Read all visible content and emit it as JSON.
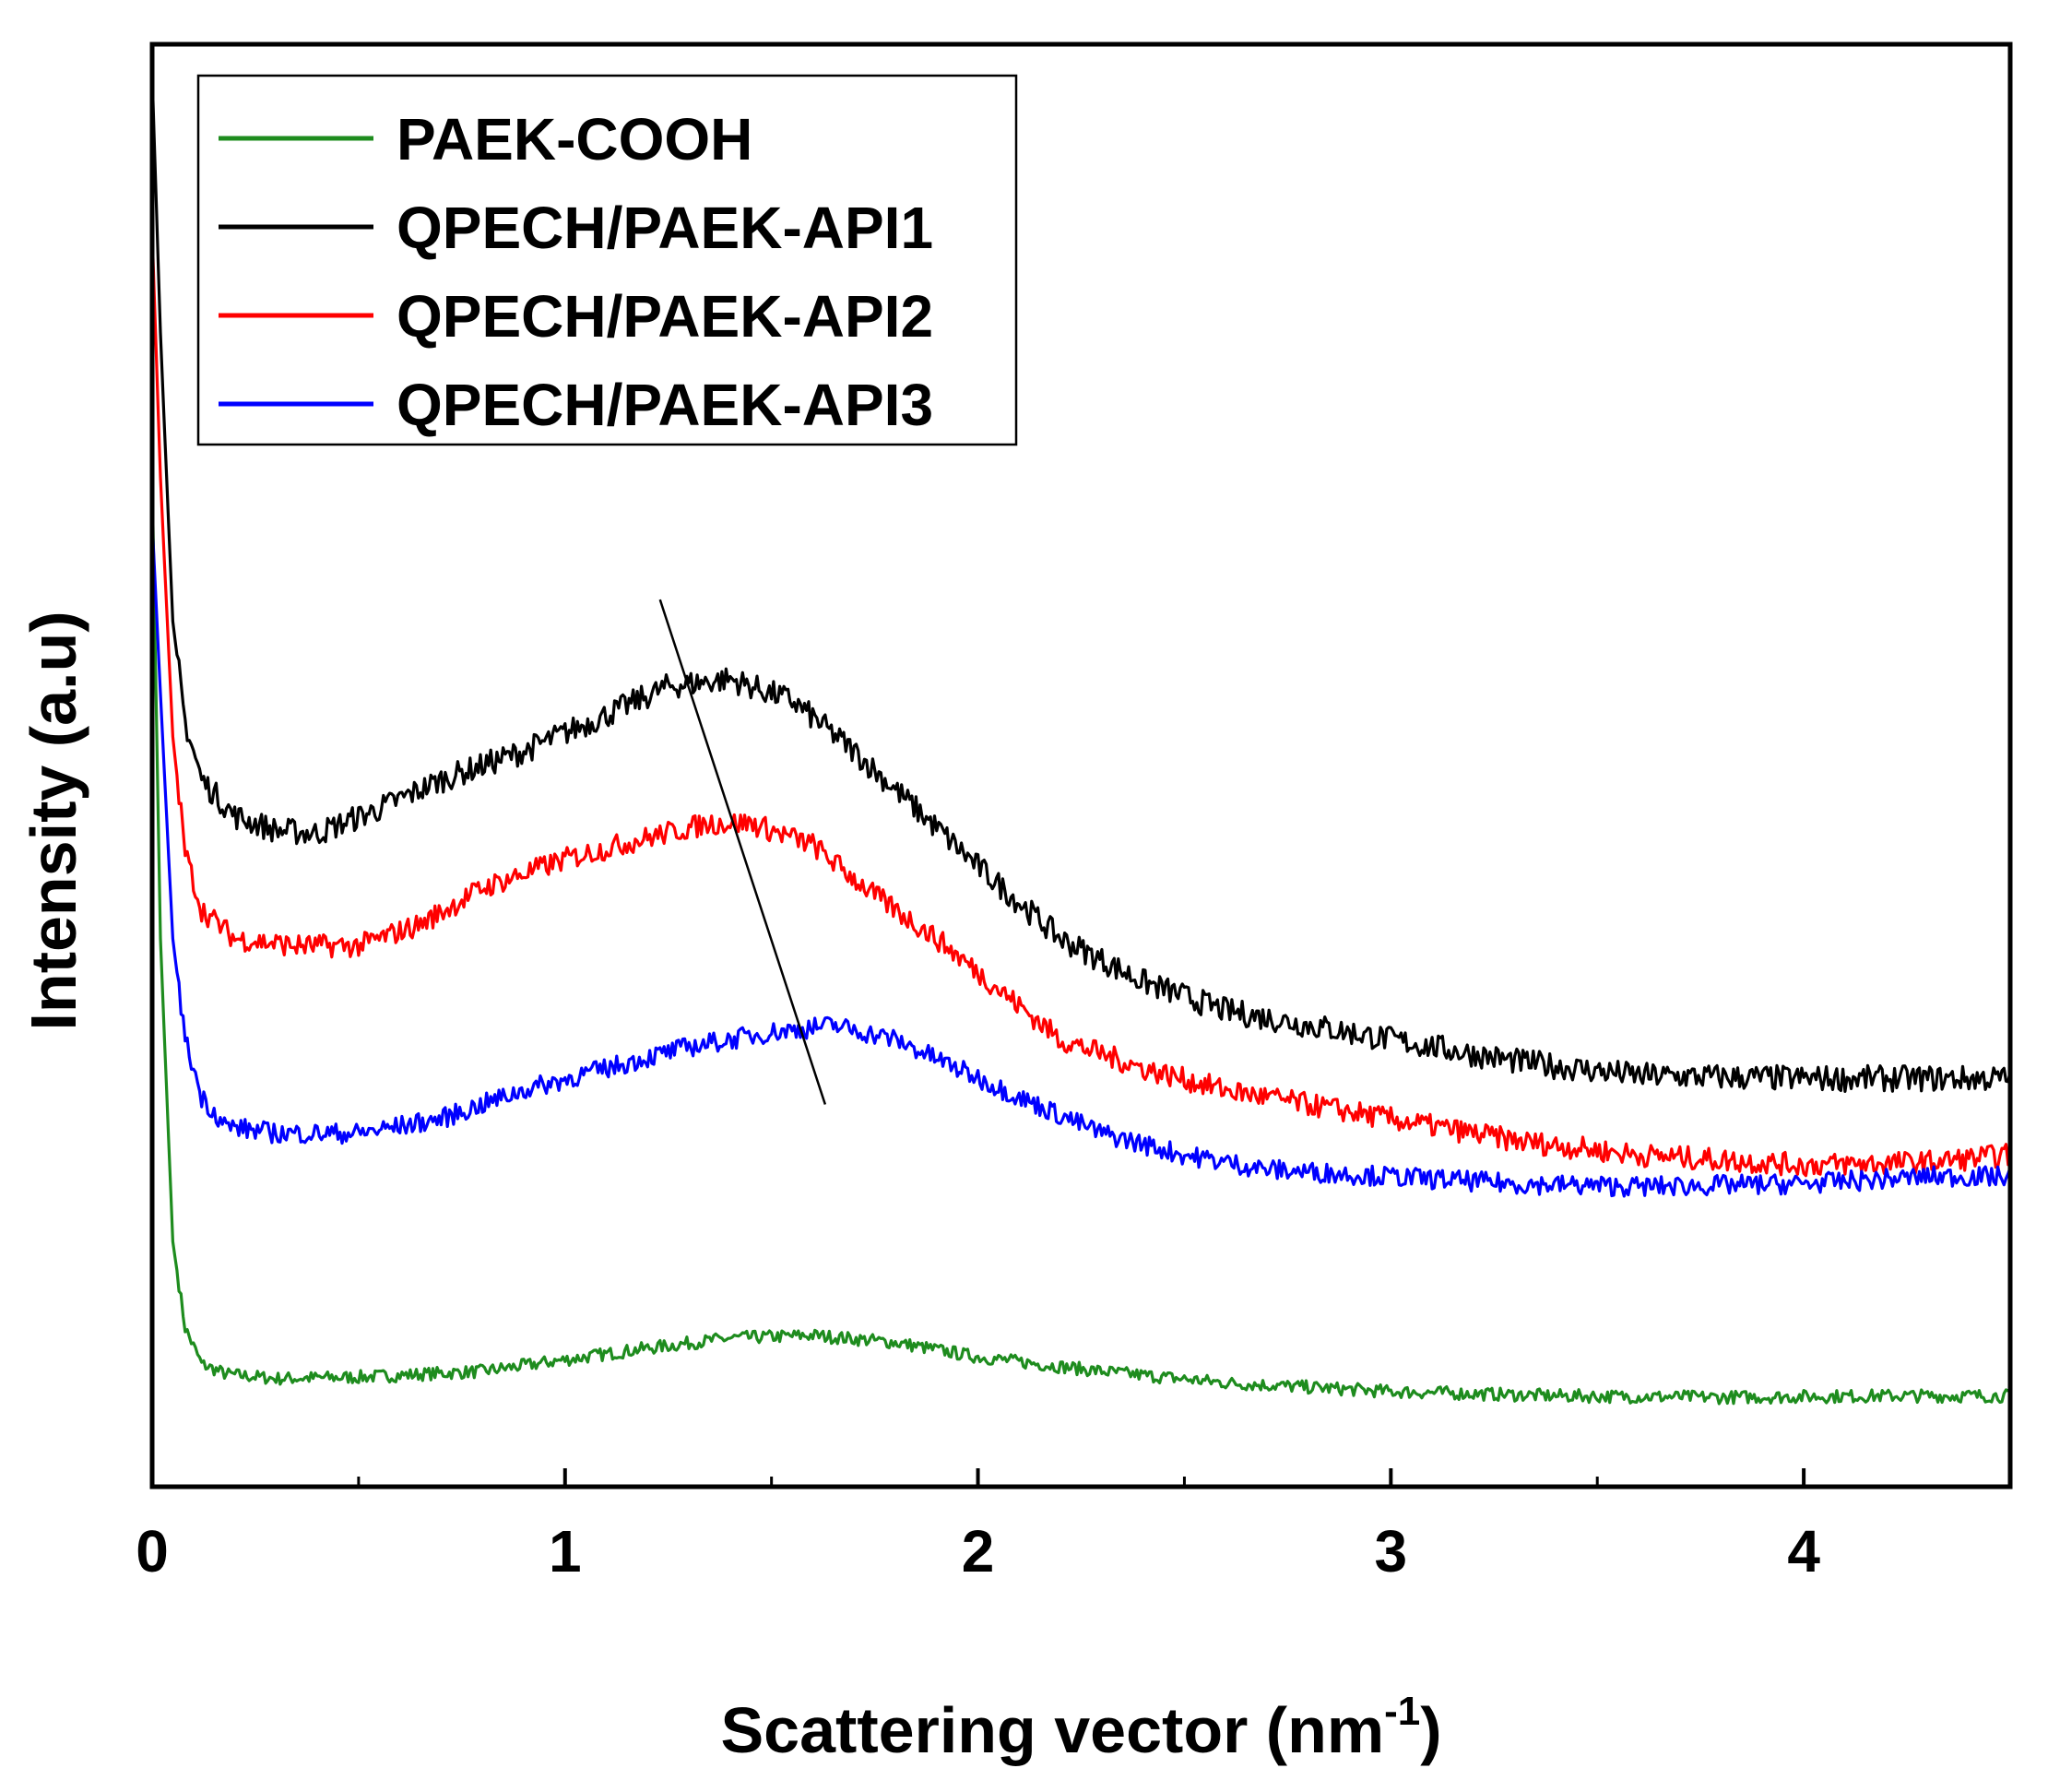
{
  "chart_data": {
    "type": "line",
    "title": "",
    "xlabel": "Scattering vector (nm",
    "xlabel_sup": "-1",
    "xlabel_close": ")",
    "ylabel": "Intensity (a.u)",
    "xlim": [
      0,
      4.5
    ],
    "ylim": [
      0,
      100
    ],
    "x_ticks": [
      0,
      1,
      2,
      3,
      4
    ],
    "x_tick_labels": [
      "0",
      "1",
      "2",
      "3",
      "4"
    ],
    "x_minor_ticks": [
      0.5,
      1.5,
      2.5,
      3.5
    ],
    "y_tick_labels": false,
    "grid": false,
    "legend_position": "top-left",
    "series": [
      {
        "name": "PAEK-COOH",
        "color": "#1e8c1e",
        "points": [
          [
            0.0,
            70
          ],
          [
            0.02,
            38
          ],
          [
            0.05,
            17
          ],
          [
            0.08,
            11
          ],
          [
            0.12,
            8.5
          ],
          [
            0.18,
            7.8
          ],
          [
            0.3,
            7.5
          ],
          [
            0.5,
            7.6
          ],
          [
            0.8,
            8.0
          ],
          [
            1.0,
            8.8
          ],
          [
            1.2,
            9.6
          ],
          [
            1.4,
            10.3
          ],
          [
            1.6,
            10.5
          ],
          [
            1.8,
            10.0
          ],
          [
            2.0,
            9.0
          ],
          [
            2.3,
            8.0
          ],
          [
            2.6,
            7.2
          ],
          [
            3.0,
            6.6
          ],
          [
            3.4,
            6.3
          ],
          [
            3.8,
            6.2
          ],
          [
            4.2,
            6.3
          ],
          [
            4.5,
            6.3
          ]
        ]
      },
      {
        "name": "QPECH/PAEK-API1",
        "color": "#000000",
        "points": [
          [
            0.0,
            98
          ],
          [
            0.02,
            80
          ],
          [
            0.05,
            60
          ],
          [
            0.08,
            53
          ],
          [
            0.12,
            49
          ],
          [
            0.2,
            46.5
          ],
          [
            0.3,
            45.5
          ],
          [
            0.4,
            45.3
          ],
          [
            0.55,
            47
          ],
          [
            0.7,
            49
          ],
          [
            0.9,
            51
          ],
          [
            1.1,
            53.5
          ],
          [
            1.25,
            55.5
          ],
          [
            1.4,
            56
          ],
          [
            1.55,
            54.5
          ],
          [
            1.7,
            51
          ],
          [
            1.85,
            47
          ],
          [
            2.0,
            43
          ],
          [
            2.2,
            38
          ],
          [
            2.4,
            35
          ],
          [
            2.6,
            33
          ],
          [
            2.8,
            32
          ],
          [
            3.0,
            31
          ],
          [
            3.3,
            29.5
          ],
          [
            3.6,
            28.5
          ],
          [
            4.0,
            28.3
          ],
          [
            4.5,
            28.3
          ]
        ]
      },
      {
        "name": "QPECH/PAEK-API2",
        "color": "#ff0000",
        "points": [
          [
            0.0,
            87
          ],
          [
            0.02,
            70
          ],
          [
            0.05,
            52
          ],
          [
            0.08,
            44
          ],
          [
            0.12,
            40
          ],
          [
            0.2,
            38
          ],
          [
            0.35,
            37.5
          ],
          [
            0.5,
            37.5
          ],
          [
            0.65,
            39
          ],
          [
            0.8,
            41.5
          ],
          [
            1.0,
            43.5
          ],
          [
            1.2,
            45
          ],
          [
            1.35,
            46
          ],
          [
            1.45,
            46
          ],
          [
            1.6,
            44.5
          ],
          [
            1.75,
            41
          ],
          [
            1.9,
            38
          ],
          [
            2.05,
            34.5
          ],
          [
            2.2,
            31
          ],
          [
            2.4,
            29
          ],
          [
            2.6,
            27.5
          ],
          [
            2.8,
            26.5
          ],
          [
            3.0,
            25.5
          ],
          [
            3.3,
            24
          ],
          [
            3.6,
            23
          ],
          [
            4.0,
            22.3
          ],
          [
            4.3,
            22.5
          ],
          [
            4.5,
            23
          ]
        ]
      },
      {
        "name": "QPECH/PAEK-API3",
        "color": "#0000ff",
        "points": [
          [
            0.0,
            67
          ],
          [
            0.02,
            55
          ],
          [
            0.05,
            38
          ],
          [
            0.08,
            31
          ],
          [
            0.12,
            27
          ],
          [
            0.18,
            25
          ],
          [
            0.3,
            24.5
          ],
          [
            0.5,
            24.5
          ],
          [
            0.7,
            25.5
          ],
          [
            0.9,
            27.5
          ],
          [
            1.1,
            29
          ],
          [
            1.3,
            30.5
          ],
          [
            1.5,
            31.5
          ],
          [
            1.65,
            32
          ],
          [
            1.8,
            31
          ],
          [
            1.95,
            29
          ],
          [
            2.1,
            27
          ],
          [
            2.3,
            24.5
          ],
          [
            2.5,
            23
          ],
          [
            2.7,
            22
          ],
          [
            3.0,
            21.5
          ],
          [
            3.3,
            21
          ],
          [
            3.6,
            20.8
          ],
          [
            4.0,
            21
          ],
          [
            4.3,
            21.5
          ],
          [
            4.5,
            21.5
          ]
        ]
      }
    ],
    "trend_line": {
      "x": [
        1.23,
        1.63
      ],
      "y": [
        61.5,
        26.5
      ],
      "color": "#000000"
    }
  }
}
